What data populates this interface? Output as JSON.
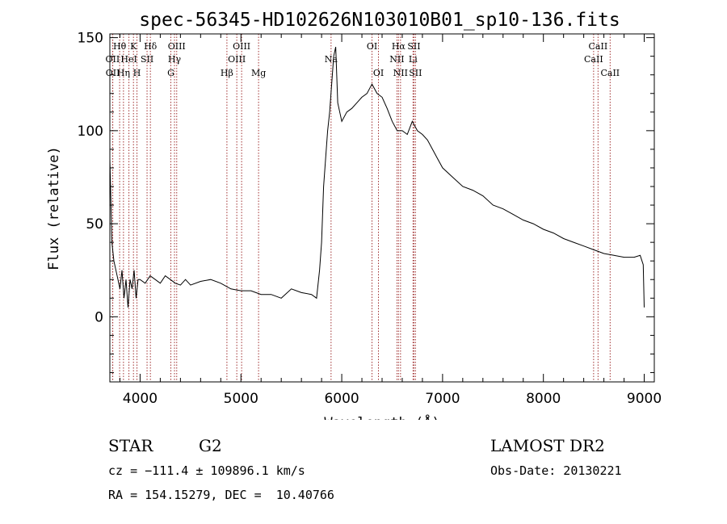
{
  "chart_data": {
    "type": "line",
    "title": "spec-56345-HD102626N103010B01_sp10-136.fits",
    "xlabel": "Wavelength (Å)",
    "ylabel": "Flux (relative)",
    "xlim": [
      3700,
      9100
    ],
    "ylim": [
      -35,
      152
    ],
    "x_ticks": [
      4000,
      5000,
      6000,
      7000,
      8000,
      9000
    ],
    "x_tick_labels": [
      "4000",
      "5000",
      "6000",
      "7000",
      "8000",
      "9000"
    ],
    "y_ticks": [
      0,
      50,
      100,
      150
    ],
    "y_tick_labels": [
      "0",
      "50",
      "100",
      "150"
    ],
    "series": [
      {
        "color": "#000000",
        "x": [
          3700,
          3720,
          3740,
          3760,
          3780,
          3800,
          3820,
          3840,
          3860,
          3880,
          3900,
          3920,
          3940,
          3960,
          3980,
          4000,
          4050,
          4100,
          4150,
          4200,
          4250,
          4300,
          4350,
          4400,
          4450,
          4500,
          4600,
          4700,
          4800,
          4900,
          5000,
          5100,
          5200,
          5300,
          5400,
          5500,
          5600,
          5700,
          5750,
          5780,
          5800,
          5820,
          5840,
          5860,
          5880,
          5900,
          5920,
          5940,
          5960,
          5980,
          6000,
          6050,
          6100,
          6150,
          6200,
          6250,
          6300,
          6350,
          6400,
          6450,
          6500,
          6550,
          6600,
          6650,
          6700,
          6750,
          6800,
          6850,
          6900,
          6950,
          7000,
          7100,
          7200,
          7300,
          7400,
          7500,
          7600,
          7700,
          7800,
          7900,
          8000,
          8100,
          8200,
          8300,
          8400,
          8500,
          8600,
          8700,
          8800,
          8900,
          8960,
          8990,
          9000
        ],
        "y": [
          85,
          40,
          30,
          25,
          20,
          15,
          25,
          10,
          20,
          5,
          20,
          15,
          25,
          10,
          20,
          20,
          18,
          22,
          20,
          18,
          22,
          20,
          18,
          17,
          20,
          17,
          19,
          20,
          18,
          15,
          14,
          14,
          12,
          12,
          10,
          15,
          13,
          12,
          10,
          25,
          40,
          70,
          85,
          100,
          110,
          125,
          140,
          145,
          115,
          110,
          105,
          110,
          112,
          115,
          118,
          120,
          125,
          120,
          118,
          112,
          105,
          100,
          100,
          98,
          105,
          100,
          98,
          95,
          90,
          85,
          80,
          75,
          70,
          68,
          65,
          60,
          58,
          55,
          52,
          50,
          47,
          45,
          42,
          40,
          38,
          36,
          34,
          33,
          32,
          32,
          33,
          28,
          5
        ]
      }
    ],
    "lines": [
      {
        "label": "Hθ",
        "wave": 3797,
        "row": 0
      },
      {
        "label": "OII",
        "wave": 3727,
        "row": 1
      },
      {
        "label": "OII",
        "wave": 3729,
        "row": 2
      },
      {
        "label": "K",
        "wave": 3934,
        "row": 0
      },
      {
        "label": "HeI",
        "wave": 3889,
        "row": 1
      },
      {
        "label": "Hη",
        "wave": 3835,
        "row": 2
      },
      {
        "label": "H",
        "wave": 3969,
        "row": 2
      },
      {
        "label": "Hδ",
        "wave": 4102,
        "row": 0
      },
      {
        "label": "SII",
        "wave": 4069,
        "row": 1
      },
      {
        "label": "OIII",
        "wave": 4363,
        "row": 0
      },
      {
        "label": "Hγ",
        "wave": 4341,
        "row": 1
      },
      {
        "label": "G",
        "wave": 4305,
        "row": 2
      },
      {
        "label": "OIII",
        "wave": 5007,
        "row": 0
      },
      {
        "label": "OIII",
        "wave": 4959,
        "row": 1
      },
      {
        "label": "Hβ",
        "wave": 4861,
        "row": 2
      },
      {
        "label": "Mg",
        "wave": 5175,
        "row": 2
      },
      {
        "label": "Na",
        "wave": 5894,
        "row": 1
      },
      {
        "label": "OI",
        "wave": 6300,
        "row": 0
      },
      {
        "label": "OI",
        "wave": 6364,
        "row": 2
      },
      {
        "label": "Hα",
        "wave": 6563,
        "row": 0
      },
      {
        "label": "SII",
        "wave": 6716,
        "row": 0
      },
      {
        "label": "NII",
        "wave": 6548,
        "row": 1
      },
      {
        "label": "Li",
        "wave": 6707,
        "row": 1
      },
      {
        "label": "NII",
        "wave": 6583,
        "row": 2
      },
      {
        "label": "SII",
        "wave": 6731,
        "row": 2
      },
      {
        "label": "CaII",
        "wave": 8542,
        "row": 0
      },
      {
        "label": "CaII",
        "wave": 8498,
        "row": 1
      },
      {
        "label": "CaII",
        "wave": 8662,
        "row": 2
      }
    ],
    "line_color": "#a03030"
  },
  "info": {
    "object_class": "STAR",
    "subclass": "G2",
    "survey": "LAMOST DR2",
    "redshift": "cz = −111.4 ± 109896.1 km/s",
    "obs_date": "Obs-Date: 20130221",
    "coords": "RA = 154.15279, DEC =  10.40766"
  }
}
